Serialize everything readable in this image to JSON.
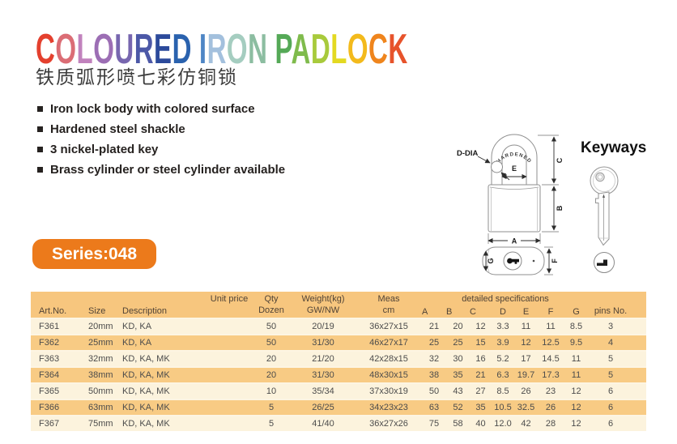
{
  "header": {
    "title": "COLOURED IRON PADLOCK",
    "title_colors": [
      "#e4402e",
      "#db6d75",
      "#c182bd",
      "#9c6eb4",
      "#7766af",
      "#4c58a7",
      "#2c4a9b",
      "#2a62ae",
      "",
      "#4e86c5",
      "#a3c0dd",
      "#a5cdc0",
      "#8cbda1",
      "",
      "#55a957",
      "#7fbb4c",
      "#a8ca3c",
      "#e3d921",
      "#f3ba1c",
      "#ef851d",
      "#e7532b"
    ],
    "subtitle_cn": "铁质弧形喷七彩仿铜锁"
  },
  "features": [
    "Iron lock body with colored surface",
    "Hardened steel shackle",
    "3 nickel-plated key",
    "Brass cylinder or steel cylinder available"
  ],
  "series_badge": "Series:048",
  "diagram": {
    "hardened": "HARDENED",
    "d_dia": "D-DIA",
    "dim_a": "A",
    "dim_b": "B",
    "dim_c": "C",
    "dim_e": "E",
    "dim_f": "F",
    "dim_g": "G"
  },
  "keyways": {
    "title": "Keyways"
  },
  "table": {
    "header": {
      "art_no": "Art.No.",
      "size": "Size",
      "description": "Description",
      "unit_price": "Unit price",
      "qty_l1": "Qty",
      "qty_l2": "Dozen",
      "weight_l1": "Weight(kg)",
      "weight_l2": "GW/NW",
      "meas_l1": "Meas",
      "meas_l2": "cm",
      "detailed_specs": "detailed specifications",
      "spec_cols": [
        "A",
        "B",
        "C",
        "D",
        "E",
        "F",
        "G"
      ],
      "pins_no": "pins No."
    },
    "col_names": [
      "art-no",
      "size",
      "description",
      "unit-price",
      "qty-dozen",
      "weight",
      "meas",
      "spec-a",
      "spec-b",
      "spec-c",
      "spec-d",
      "spec-e",
      "spec-f",
      "spec-g",
      "pins-no"
    ],
    "rows": [
      [
        "F361",
        "20mm",
        "KD, KA",
        "",
        "50",
        "20/19",
        "36x27x15",
        "21",
        "20",
        "12",
        "3.3",
        "11",
        "11",
        "8.5",
        "3"
      ],
      [
        "F362",
        "25mm",
        "KD, KA",
        "",
        "50",
        "31/30",
        "46x27x17",
        "25",
        "25",
        "15",
        "3.9",
        "12",
        "12.5",
        "9.5",
        "4"
      ],
      [
        "F363",
        "32mm",
        "KD, KA, MK",
        "",
        "20",
        "21/20",
        "42x28x15",
        "32",
        "30",
        "16",
        "5.2",
        "17",
        "14.5",
        "11",
        "5"
      ],
      [
        "F364",
        "38mm",
        "KD, KA, MK",
        "",
        "20",
        "31/30",
        "48x30x15",
        "38",
        "35",
        "21",
        "6.3",
        "19.7",
        "17.3",
        "11",
        "5"
      ],
      [
        "F365",
        "50mm",
        "KD, KA, MK",
        "",
        "10",
        "35/34",
        "37x30x19",
        "50",
        "43",
        "27",
        "8.5",
        "26",
        "23",
        "12",
        "6"
      ],
      [
        "F366",
        "63mm",
        "KD, KA, MK",
        "",
        "5",
        "26/25",
        "34x23x23",
        "63",
        "52",
        "35",
        "10.5",
        "32.5",
        "26",
        "12",
        "6"
      ],
      [
        "F367",
        "75mm",
        "KD, KA, MK",
        "",
        "5",
        "41/40",
        "36x27x26",
        "75",
        "58",
        "40",
        "12.0",
        "42",
        "28",
        "12",
        "6"
      ]
    ]
  },
  "colors": {
    "badge_orange": "#ec7a1b",
    "table_header_bg": "#f7c67e",
    "row_light": "#fcf3dd",
    "row_dark": "#f8cb84",
    "row_separator": "#fdf5e3"
  }
}
